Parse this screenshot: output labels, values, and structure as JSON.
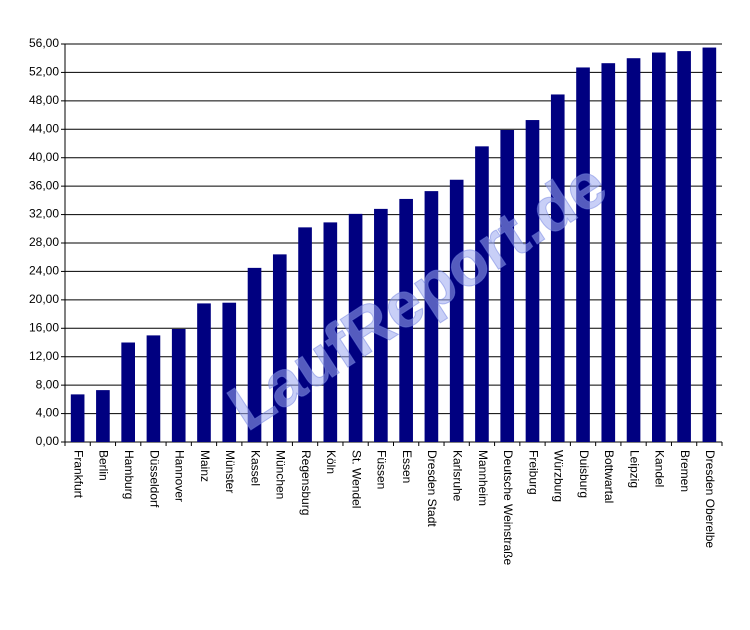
{
  "chart_data": {
    "type": "bar",
    "watermark": "LaufReport.de",
    "categories": [
      "Frankfurt",
      "Berlin",
      "Hamburg",
      "Düsseldorf",
      "Hannover",
      "Mainz",
      "Münster",
      "Kassel",
      "München",
      "Regensburg",
      "Köln",
      "St. Wendel",
      "Füssen",
      "Essen",
      "Dresden Stadt",
      "Karlsruhe",
      "Mannheim",
      "Deutsche Weinstraße",
      "Freiburg",
      "Würzburg",
      "Duisburg",
      "Bottwartal",
      "Leipzig",
      "Kandel",
      "Bremen",
      "Dresden Oberelbe"
    ],
    "values": [
      6.7,
      7.3,
      14.0,
      15.0,
      15.9,
      19.5,
      19.6,
      24.5,
      26.4,
      30.2,
      30.9,
      32.1,
      32.8,
      34.2,
      35.3,
      36.9,
      41.6,
      43.9,
      45.3,
      48.9,
      52.7,
      53.3,
      54.0,
      54.8,
      55.0,
      55.5
    ],
    "color": "#000080",
    "ylim": [
      0,
      56
    ],
    "yticks": [
      {
        "value": 0,
        "label": "0,00"
      },
      {
        "value": 4,
        "label": "4,00"
      },
      {
        "value": 8,
        "label": "8,00"
      },
      {
        "value": 12,
        "label": "12,00"
      },
      {
        "value": 16,
        "label": "16,00"
      },
      {
        "value": 20,
        "label": "20,00"
      },
      {
        "value": 24,
        "label": "24,00"
      },
      {
        "value": 28,
        "label": "28,00"
      },
      {
        "value": 32,
        "label": "32,00"
      },
      {
        "value": 36,
        "label": "36,00"
      },
      {
        "value": 40,
        "label": "40,00"
      },
      {
        "value": 44,
        "label": "44,00"
      },
      {
        "value": 48,
        "label": "48,00"
      },
      {
        "value": 52,
        "label": "52,00"
      },
      {
        "value": 56,
        "label": "56,00"
      }
    ],
    "grid": true
  }
}
